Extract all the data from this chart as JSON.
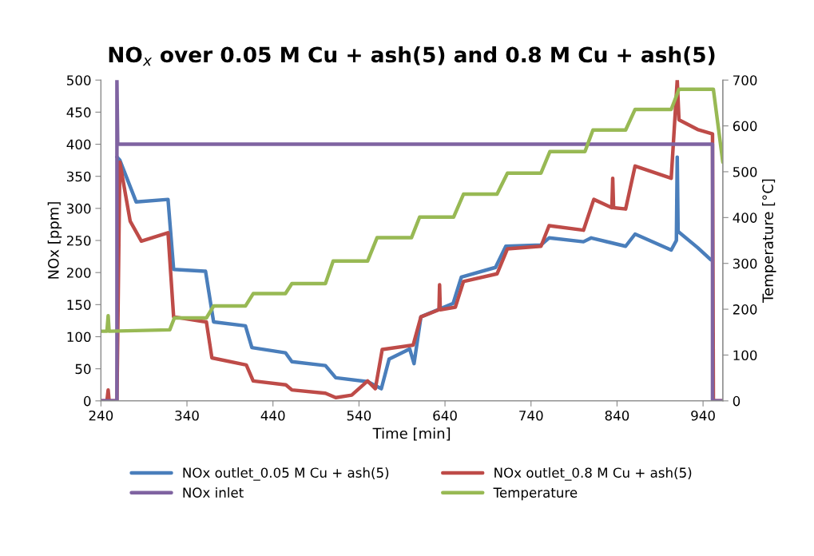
{
  "chart_data": {
    "type": "line",
    "title": "NO$_{x}$ over 0.05 M Cu + ash(5) and 0.8 M Cu + ash(5)",
    "xlabel": "Time [min]",
    "ylabel": "NOx [ppm]",
    "y2label": "Temperature [°C]",
    "xlim": [
      240,
      963
    ],
    "xticks": [
      240,
      340,
      440,
      540,
      640,
      740,
      840,
      940
    ],
    "ylim": [
      0,
      500
    ],
    "yticks": [
      0,
      50,
      100,
      150,
      200,
      250,
      300,
      350,
      400,
      450,
      500
    ],
    "y2lim": [
      0,
      700
    ],
    "y2ticks": [
      0,
      100,
      200,
      300,
      400,
      500,
      600,
      700
    ],
    "grid": false,
    "legend": "bottom",
    "marker": "none",
    "line_style": "solid",
    "series": [
      {
        "name": "NOx outlet_0.05 M Cu + ash(5)",
        "color": "#4a7ebb",
        "x": [
          258.6,
          262,
          281,
          318,
          324.5,
          361.6,
          371,
          408,
          415.5,
          454.5,
          462,
          501,
          513,
          550,
          566,
          575,
          599,
          604,
          612,
          649.5,
          659,
          698.7,
          710.7,
          751.6,
          761,
          801,
          810,
          850,
          861,
          903,
          909,
          910,
          911,
          933.6,
          949
        ],
        "values": [
          380,
          375,
          310,
          314,
          205,
          202,
          123,
          117,
          83,
          75,
          61,
          55,
          36,
          30,
          19,
          65,
          81,
          58,
          131,
          152,
          193,
          208,
          241,
          243,
          254,
          248,
          254,
          241,
          260,
          235,
          250,
          380,
          264,
          239,
          220
        ]
      },
      {
        "name": "NOx outlet_0.8 M Cu + ash(5)",
        "color": "#be4b48",
        "x": [
          240,
          247,
          248.4,
          249.5,
          258.6,
          262,
          274,
          287,
          318,
          324.5,
          362.6,
          369,
          409,
          417,
          455,
          462,
          501,
          513,
          531.5,
          550,
          559,
          567,
          603,
          612,
          633,
          633.7,
          634.5,
          652,
          661.5,
          700.5,
          712.6,
          751.6,
          761,
          801,
          813,
          834,
          835,
          836,
          850,
          861,
          903,
          910,
          912,
          933.6,
          951,
          952,
          963
        ],
        "values": [
          0,
          0,
          17,
          0,
          0,
          372,
          280,
          249,
          262,
          131,
          123,
          67,
          56,
          31,
          25,
          17,
          12,
          5,
          9,
          31,
          19,
          80,
          87,
          131,
          142,
          181,
          142,
          146,
          186,
          198,
          237,
          241,
          273,
          266,
          314,
          301,
          347,
          301,
          299,
          366,
          347,
          500,
          438,
          423,
          416,
          0,
          0
        ]
      },
      {
        "name": "NOx inlet",
        "color": "#7f63a1",
        "x": [
          240,
          258.6,
          258.6,
          259.5,
          951,
          951,
          963
        ],
        "values": [
          0,
          0,
          500,
          400,
          400,
          0,
          0
        ]
      },
      {
        "name": "Temperature",
        "color": "#98b954",
        "axis": "y2",
        "x": [
          240,
          247,
          248.4,
          249.5,
          320,
          325.4,
          362.6,
          371,
          408,
          417,
          454.5,
          462,
          501,
          510,
          550,
          561,
          601,
          610.5,
          650,
          661.5,
          700.5,
          712.6,
          751.6,
          762,
          802.7,
          812,
          850,
          861,
          903,
          912,
          952,
          963
        ],
        "values": [
          152,
          152,
          186,
          152,
          155,
          181,
          181,
          207,
          207,
          234,
          234,
          256,
          256,
          305,
          305,
          356,
          356,
          401,
          401,
          451,
          451,
          497,
          497,
          544,
          544,
          591,
          591,
          636,
          636,
          680,
          680,
          521
        ]
      }
    ]
  }
}
